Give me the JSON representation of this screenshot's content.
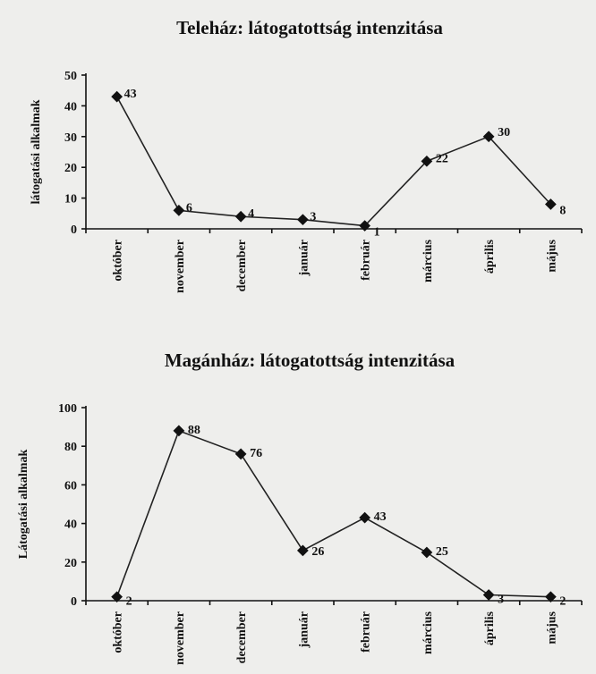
{
  "chart_data": [
    {
      "type": "line",
      "title": "Teleház: látogatottság intenzitása",
      "ylabel": "látogatási alkalmak",
      "xlabel": "",
      "ylim": [
        0,
        50
      ],
      "yticks": [
        0,
        10,
        20,
        30,
        40,
        50
      ],
      "categories": [
        "október",
        "november",
        "december",
        "január",
        "február",
        "március",
        "április",
        "május"
      ],
      "values": [
        43,
        6,
        4,
        3,
        1,
        22,
        30,
        8
      ],
      "grid": false,
      "legend": false
    },
    {
      "type": "line",
      "title": "Magánház: látogatottság intenzitása",
      "ylabel": "Látogatási alkalmak",
      "xlabel": "",
      "ylim": [
        0,
        100
      ],
      "yticks": [
        0,
        20,
        40,
        60,
        80,
        100
      ],
      "categories": [
        "október",
        "november",
        "december",
        "január",
        "február",
        "március",
        "április",
        "május"
      ],
      "values": [
        2,
        88,
        76,
        26,
        43,
        25,
        3,
        2
      ],
      "grid": false,
      "legend": false
    }
  ]
}
